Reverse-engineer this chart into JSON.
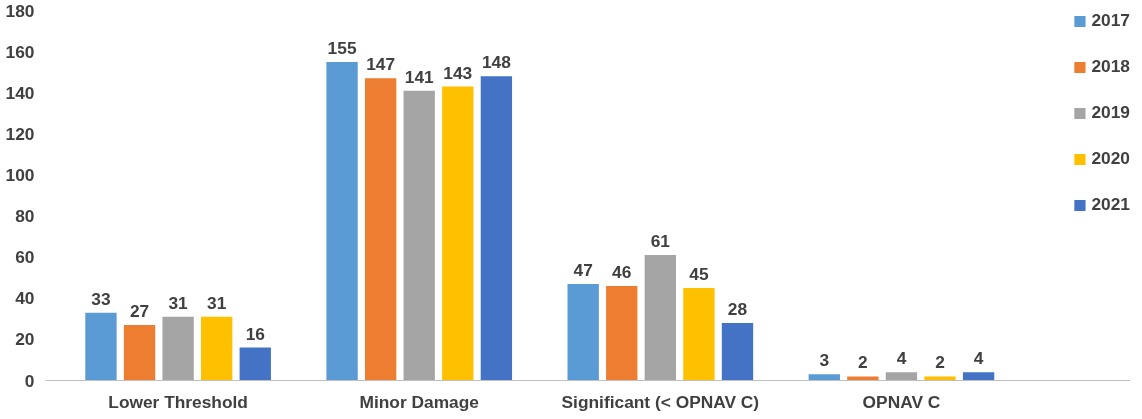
{
  "chart_data": {
    "type": "bar",
    "categories": [
      "Lower Threshold",
      "Minor Damage",
      "Significant (< OPNAV C)",
      "OPNAV C"
    ],
    "series": [
      {
        "name": "2017",
        "color": "#5b9bd5",
        "values": [
          33,
          155,
          47,
          3
        ]
      },
      {
        "name": "2018",
        "color": "#ed7d31",
        "values": [
          27,
          147,
          46,
          2
        ]
      },
      {
        "name": "2019",
        "color": "#a5a5a5",
        "values": [
          31,
          141,
          61,
          4
        ]
      },
      {
        "name": "2020",
        "color": "#ffc000",
        "values": [
          31,
          143,
          45,
          2
        ]
      },
      {
        "name": "2021",
        "color": "#4472c4",
        "values": [
          16,
          148,
          28,
          4
        ]
      }
    ],
    "ylim": [
      0,
      180
    ],
    "yticks": [
      0,
      20,
      40,
      60,
      80,
      100,
      120,
      140,
      160,
      180
    ],
    "grid": false,
    "legend": "right",
    "data_labels": true
  }
}
